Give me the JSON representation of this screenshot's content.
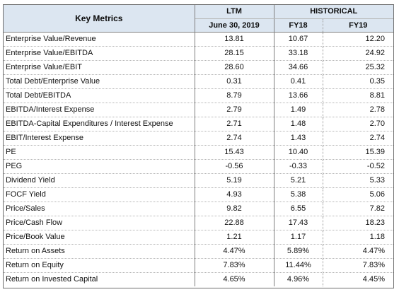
{
  "table": {
    "header": {
      "metric": "Key Metrics",
      "ltm": "LTM",
      "ltm_date": "June 30, 2019",
      "historical": "HISTORICAL",
      "fy18": "FY18",
      "fy19": "FY19"
    },
    "rows": [
      {
        "metric": "Enterprise Value/Revenue",
        "ltm": "13.81",
        "fy18": "10.67",
        "fy19": "12.20"
      },
      {
        "metric": "Enterprise Value/EBITDA",
        "ltm": "28.15",
        "fy18": "33.18",
        "fy19": "24.92"
      },
      {
        "metric": "Enterprise Value/EBIT",
        "ltm": "28.60",
        "fy18": "34.66",
        "fy19": "25.32"
      },
      {
        "metric": "Total Debt/Enterprise Value",
        "ltm": "0.31",
        "fy18": "0.41",
        "fy19": "0.35"
      },
      {
        "metric": "Total Debt/EBITDA",
        "ltm": "8.79",
        "fy18": "13.66",
        "fy19": "8.81"
      },
      {
        "metric": "EBITDA/Interest Expense",
        "ltm": "2.79",
        "fy18": "1.49",
        "fy19": "2.78"
      },
      {
        "metric": "EBITDA-Capital Expenditures / Interest Expense",
        "ltm": "2.71",
        "fy18": "1.48",
        "fy19": "2.70"
      },
      {
        "metric": "EBIT/Interest Expense",
        "ltm": "2.74",
        "fy18": "1.43",
        "fy19": "2.74"
      },
      {
        "metric": "PE",
        "ltm": "15.43",
        "fy18": "10.40",
        "fy19": "15.39"
      },
      {
        "metric": "PEG",
        "ltm": "-0.56",
        "fy18": "-0.33",
        "fy19": "-0.52"
      },
      {
        "metric": "Dividend Yield",
        "ltm": "5.19",
        "fy18": "5.21",
        "fy19": "5.33"
      },
      {
        "metric": "FOCF Yield",
        "ltm": "4.93",
        "fy18": "5.38",
        "fy19": "5.06"
      },
      {
        "metric": "Price/Sales",
        "ltm": "9.82",
        "fy18": "6.55",
        "fy19": "7.82"
      },
      {
        "metric": "Price/Cash Flow",
        "ltm": "22.88",
        "fy18": "17.43",
        "fy19": "18.23"
      },
      {
        "metric": "Price/Book Value",
        "ltm": "1.21",
        "fy18": "1.17",
        "fy19": "1.18"
      },
      {
        "metric": "Return on Assets",
        "ltm": "4.47%",
        "fy18": "5.89%",
        "fy19": "4.47%"
      },
      {
        "metric": "Return on Equity",
        "ltm": "7.83%",
        "fy18": "11.44%",
        "fy19": "7.83%"
      },
      {
        "metric": "Return on Invested Capital",
        "ltm": "4.65%",
        "fy18": "4.96%",
        "fy19": "4.45%"
      }
    ]
  },
  "colors": {
    "header_background": "#dce6f1",
    "border": "#7f7f7f",
    "row_divider": "#b4b4b4"
  }
}
